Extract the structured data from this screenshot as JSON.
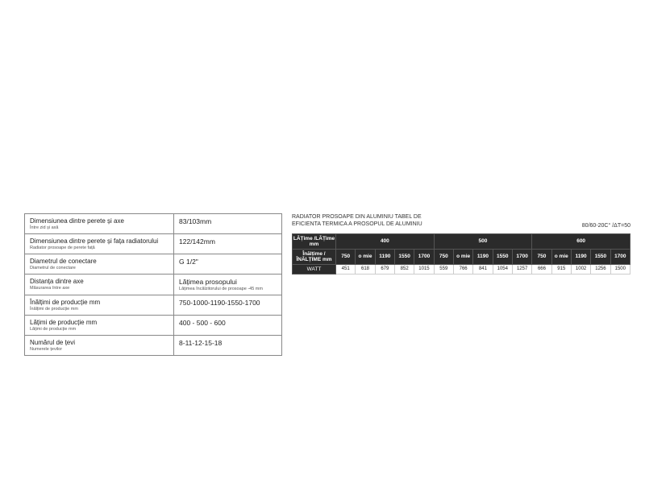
{
  "specs": {
    "rows": [
      {
        "label": "Dimensiunea dintre perete și axe",
        "sublabel": "Între zid și axă",
        "value": "83/103mm",
        "subvalue": ""
      },
      {
        "label": "Dimensiunea dintre perete și fața radiatorului",
        "sublabel": "Radiator prosoape de perete față",
        "value": "122/142mm",
        "subvalue": ""
      },
      {
        "label": "Diametrul de conectare",
        "sublabel": "Diametrul de conectare",
        "value": "G 1/2\"",
        "subvalue": ""
      },
      {
        "label": "Distanța dintre axe",
        "sublabel": "Măsurarea între axe",
        "value": "Lățimea prosopului",
        "subvalue": "Lățimea încălzitorului de prosoape -45 mm"
      },
      {
        "label": "Înălțimi de producție mm",
        "sublabel": "Înălțimi de producție mm",
        "value": "750-1000-1190-1550-1700",
        "subvalue": ""
      },
      {
        "label": "Lățimi de producție mm",
        "sublabel": "Lățimi de producție mm",
        "value": "400 - 500 - 600",
        "subvalue": ""
      },
      {
        "label": "Numărul de țevi",
        "sublabel": "Numerele țevilor",
        "value": "8-11-12-15-18",
        "subvalue": ""
      }
    ]
  },
  "efficiency": {
    "title_line1": "RADIATOR PROSOAPE DIN ALUMINIU TABEL DE",
    "title_line2": "EFICIENTA TERMICA A PROSOPUL DE ALUMINIU",
    "condition": "80/60-20C° /ΔT=50",
    "width_label": "LĂȚime /LĂȚime mm",
    "height_label": "Înălțime /ÎNĂLȚIME mm",
    "widths": [
      "400",
      "500",
      "600"
    ],
    "heights": [
      "750",
      "o mie",
      "1190",
      "1550",
      "1700"
    ],
    "row_label": "WATT",
    "values": [
      [
        "451",
        "618",
        "679",
        "852",
        "1015"
      ],
      [
        "559",
        "766",
        "841",
        "1054",
        "1257"
      ],
      [
        "666",
        "915",
        "1002",
        "1256",
        "1500"
      ]
    ],
    "colors": {
      "header_bg": "#2b2b2b",
      "header_fg": "#ffffff",
      "cell_bg": "#ffffff",
      "cell_fg": "#222222",
      "cell_border": "#cccccc"
    }
  }
}
